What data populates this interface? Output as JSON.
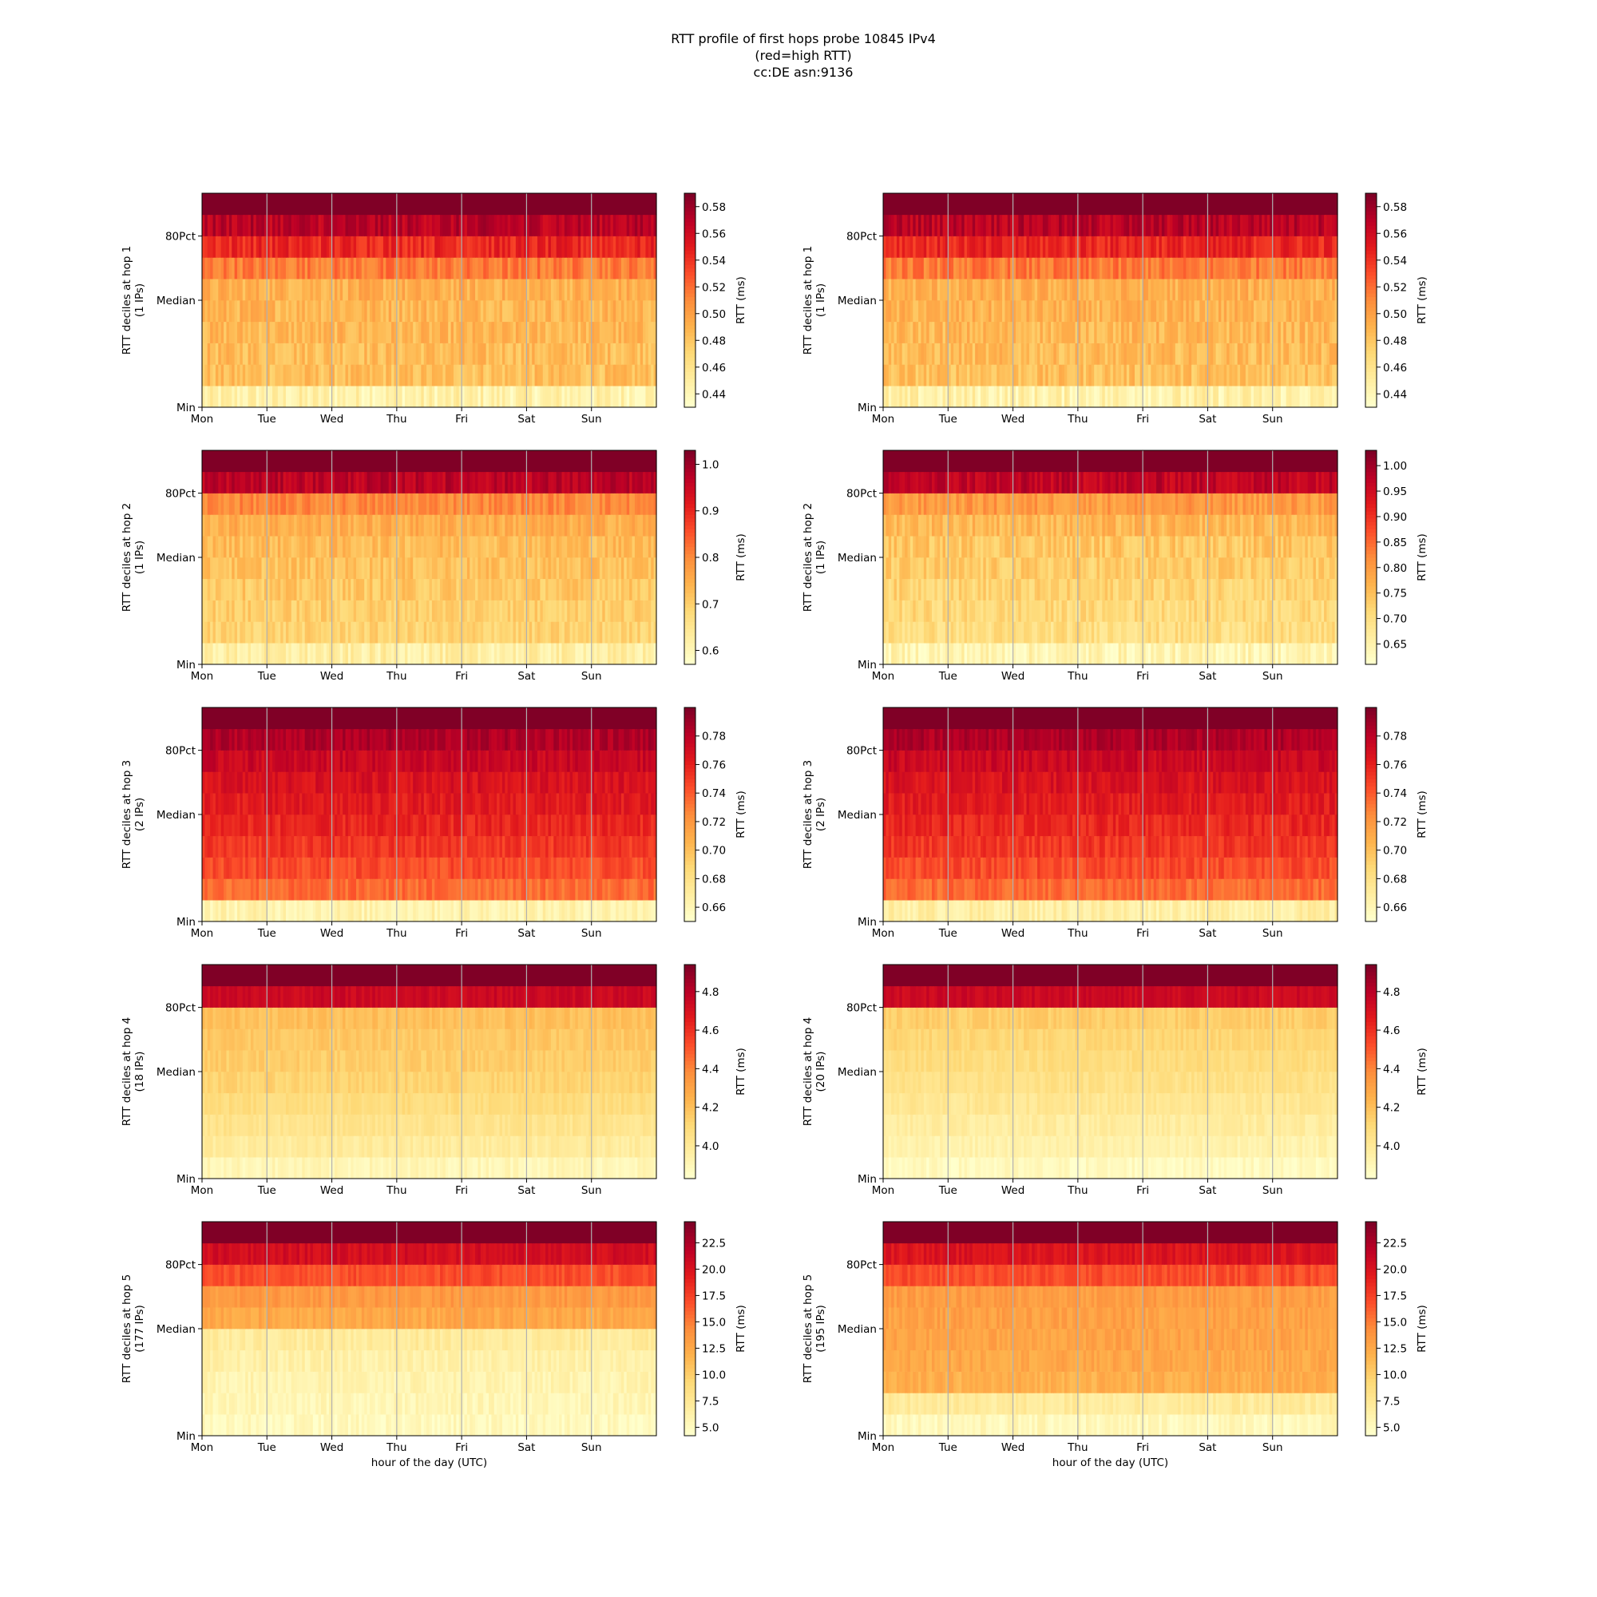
{
  "title_lines": [
    "RTT profile of first hops probe 10845 IPv4",
    "(red=high RTT)",
    "cc:DE asn:9136"
  ],
  "colormap": [
    "#ffffcc",
    "#ffeda0",
    "#fed976",
    "#feb24c",
    "#fd8d3c",
    "#fc4e2a",
    "#e31a1c",
    "#bd0026",
    "#800026"
  ],
  "grid_color": "#b0b0b0",
  "chart_data": [
    {
      "type": "heatmap",
      "hop": 1,
      "ylabel": "RTT deciles at hop 1",
      "ylabel2": "(1 IPs)",
      "xlabel": "",
      "cbar_label": "RTT (ms)",
      "x_ticks": [
        "Mon",
        "Tue",
        "Wed",
        "Thu",
        "Fri",
        "Sat",
        "Sun"
      ],
      "y_ticks": [
        "Min",
        "Median",
        "80Pct"
      ],
      "cbar_ticks": [
        "0.44",
        "0.46",
        "0.48",
        "0.50",
        "0.52",
        "0.54",
        "0.56",
        "0.58"
      ],
      "clim": [
        0.43,
        0.59
      ],
      "decile_levels": [
        0.445,
        0.483,
        0.485,
        0.487,
        0.489,
        0.491,
        0.515,
        0.545,
        0.57,
        0.59
      ],
      "jitter": 0.012
    },
    {
      "type": "heatmap",
      "hop": 1,
      "ylabel": "RTT deciles at hop 1",
      "ylabel2": "(1 IPs)",
      "xlabel": "",
      "cbar_label": "RTT (ms)",
      "x_ticks": [
        "Mon",
        "Tue",
        "Wed",
        "Thu",
        "Fri",
        "Sat",
        "Sun"
      ],
      "y_ticks": [
        "Min",
        "Median",
        "80Pct"
      ],
      "cbar_ticks": [
        "0.44",
        "0.46",
        "0.48",
        "0.50",
        "0.52",
        "0.54",
        "0.56",
        "0.58"
      ],
      "clim": [
        0.43,
        0.59
      ],
      "decile_levels": [
        0.445,
        0.483,
        0.485,
        0.487,
        0.489,
        0.491,
        0.515,
        0.545,
        0.57,
        0.59
      ],
      "jitter": 0.012
    },
    {
      "type": "heatmap",
      "hop": 2,
      "ylabel": "RTT deciles at hop 2",
      "ylabel2": "(1 IPs)",
      "xlabel": "",
      "cbar_label": "RTT (ms)",
      "x_ticks": [
        "Mon",
        "Tue",
        "Wed",
        "Thu",
        "Fri",
        "Sat",
        "Sun"
      ],
      "y_ticks": [
        "Min",
        "Median",
        "80Pct"
      ],
      "cbar_ticks": [
        "0.6",
        "0.7",
        "0.8",
        "0.9",
        "1.0"
      ],
      "clim": [
        0.57,
        1.03
      ],
      "decile_levels": [
        0.62,
        0.69,
        0.7,
        0.71,
        0.72,
        0.73,
        0.75,
        0.8,
        0.97,
        1.03
      ],
      "jitter": 0.03
    },
    {
      "type": "heatmap",
      "hop": 2,
      "ylabel": "RTT deciles at hop 2",
      "ylabel2": "(1 IPs)",
      "xlabel": "",
      "cbar_label": "RTT (ms)",
      "x_ticks": [
        "Mon",
        "Tue",
        "Wed",
        "Thu",
        "Fri",
        "Sat",
        "Sun"
      ],
      "y_ticks": [
        "Min",
        "Median",
        "80Pct"
      ],
      "cbar_ticks": [
        "0.65",
        "0.70",
        "0.75",
        "0.80",
        "0.85",
        "0.90",
        "0.95",
        "1.00"
      ],
      "clim": [
        0.61,
        1.03
      ],
      "decile_levels": [
        0.64,
        0.7,
        0.71,
        0.72,
        0.73,
        0.74,
        0.76,
        0.8,
        0.97,
        1.03
      ],
      "jitter": 0.03
    },
    {
      "type": "heatmap",
      "hop": 3,
      "ylabel": "RTT deciles at hop 3",
      "ylabel2": "(2 IPs)",
      "xlabel": "",
      "cbar_label": "RTT (ms)",
      "x_ticks": [
        "Mon",
        "Tue",
        "Wed",
        "Thu",
        "Fri",
        "Sat",
        "Sun"
      ],
      "y_ticks": [
        "Min",
        "Median",
        "80Pct"
      ],
      "cbar_ticks": [
        "0.66",
        "0.68",
        "0.70",
        "0.72",
        "0.74",
        "0.76",
        "0.78"
      ],
      "clim": [
        0.65,
        0.8
      ],
      "decile_levels": [
        0.663,
        0.735,
        0.745,
        0.752,
        0.758,
        0.763,
        0.768,
        0.775,
        0.785,
        0.8
      ],
      "jitter": 0.008
    },
    {
      "type": "heatmap",
      "hop": 3,
      "ylabel": "RTT deciles at hop 3",
      "ylabel2": "(2 IPs)",
      "xlabel": "",
      "cbar_label": "RTT (ms)",
      "x_ticks": [
        "Mon",
        "Tue",
        "Wed",
        "Thu",
        "Fri",
        "Sat",
        "Sun"
      ],
      "y_ticks": [
        "Min",
        "Median",
        "80Pct"
      ],
      "cbar_ticks": [
        "0.66",
        "0.68",
        "0.70",
        "0.72",
        "0.74",
        "0.76",
        "0.78"
      ],
      "clim": [
        0.65,
        0.8
      ],
      "decile_levels": [
        0.667,
        0.735,
        0.745,
        0.752,
        0.758,
        0.763,
        0.768,
        0.775,
        0.785,
        0.8
      ],
      "jitter": 0.008
    },
    {
      "type": "heatmap",
      "hop": 4,
      "ylabel": "RTT deciles at hop 4",
      "ylabel2": "(18 IPs)",
      "xlabel": "",
      "cbar_label": "RTT (ms)",
      "x_ticks": [
        "Mon",
        "Tue",
        "Wed",
        "Thu",
        "Fri",
        "Sat",
        "Sun"
      ],
      "y_ticks": [
        "Min",
        "Median",
        "80Pct"
      ],
      "cbar_ticks": [
        "4.0",
        "4.2",
        "4.4",
        "4.6",
        "4.8"
      ],
      "clim": [
        3.83,
        4.94
      ],
      "decile_levels": [
        3.9,
        3.98,
        4.03,
        4.08,
        4.12,
        4.15,
        4.17,
        4.2,
        4.75,
        4.94
      ],
      "jitter": 0.04
    },
    {
      "type": "heatmap",
      "hop": 4,
      "ylabel": "RTT deciles at hop 4",
      "ylabel2": "(20 IPs)",
      "xlabel": "",
      "cbar_label": "RTT (ms)",
      "x_ticks": [
        "Mon",
        "Tue",
        "Wed",
        "Thu",
        "Fri",
        "Sat",
        "Sun"
      ],
      "y_ticks": [
        "Min",
        "Median",
        "80Pct"
      ],
      "cbar_ticks": [
        "4.0",
        "4.2",
        "4.4",
        "4.6",
        "4.8"
      ],
      "clim": [
        3.83,
        4.94
      ],
      "decile_levels": [
        3.87,
        3.93,
        3.97,
        4.01,
        4.05,
        4.08,
        4.11,
        4.15,
        4.75,
        4.94
      ],
      "jitter": 0.04
    },
    {
      "type": "heatmap",
      "hop": 5,
      "ylabel": "RTT deciles at hop 5",
      "ylabel2": "(177 IPs)",
      "xlabel": "hour of the day (UTC)",
      "cbar_label": "RTT (ms)",
      "x_ticks": [
        "Mon",
        "Tue",
        "Wed",
        "Thu",
        "Fri",
        "Sat",
        "Sun"
      ],
      "y_ticks": [
        "Min",
        "Median",
        "80Pct"
      ],
      "cbar_ticks": [
        "5.0",
        "7.5",
        "10.0",
        "12.5",
        "15.0",
        "17.5",
        "20.0",
        "22.5"
      ],
      "clim": [
        4.2,
        24.5
      ],
      "decile_levels": [
        5.0,
        5.5,
        5.8,
        6.2,
        7.0,
        12.5,
        13.5,
        17.0,
        20.5,
        24.5
      ],
      "jitter": 0.9
    },
    {
      "type": "heatmap",
      "hop": 5,
      "ylabel": "RTT deciles at hop 5",
      "ylabel2": "(195 IPs)",
      "xlabel": "hour of the day (UTC)",
      "cbar_label": "RTT (ms)",
      "x_ticks": [
        "Mon",
        "Tue",
        "Wed",
        "Thu",
        "Fri",
        "Sat",
        "Sun"
      ],
      "y_ticks": [
        "Min",
        "Median",
        "80Pct"
      ],
      "cbar_ticks": [
        "5.0",
        "7.5",
        "10.0",
        "12.5",
        "15.0",
        "17.5",
        "20.0",
        "22.5"
      ],
      "clim": [
        4.2,
        24.5
      ],
      "decile_levels": [
        5.2,
        7.0,
        12.0,
        12.5,
        12.8,
        13.0,
        13.3,
        17.0,
        20.0,
        24.5
      ],
      "jitter": 0.9
    }
  ]
}
